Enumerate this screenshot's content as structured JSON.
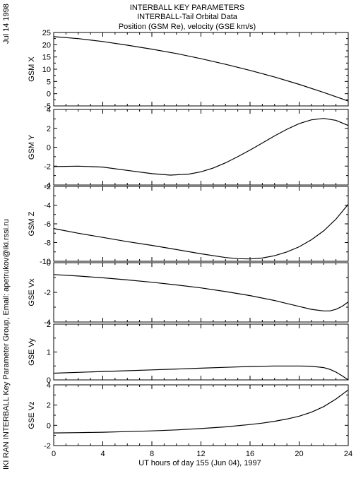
{
  "header": {
    "title1": "INTERBALL KEY PARAMETERS",
    "title2": "INTERBALL-Tail Orbital Data",
    "title3": "Position (GSM Re), velocity (GSE km/s)"
  },
  "side_labels": {
    "date": "Jul 14 1998",
    "credit": "IKI RAN INTERBALL Key Parameter Group, Email: apetrukov@iki.rssi.ru"
  },
  "chart_data": {
    "type": "line",
    "xlabel": "UT hours of day 155 (Jun 04), 1997",
    "xlim": [
      0,
      24
    ],
    "xticks": [
      0,
      4,
      8,
      12,
      16,
      20,
      24
    ],
    "panels": [
      {
        "ylabel": "GSM X",
        "ylim": [
          -5,
          25
        ],
        "yticks": [
          -5,
          0,
          5,
          10,
          15,
          20,
          25
        ],
        "x": [
          0,
          2,
          4,
          6,
          8,
          10,
          12,
          14,
          16,
          18,
          20,
          22,
          24
        ],
        "values": [
          23.3,
          22.5,
          21.3,
          19.8,
          18.2,
          16.4,
          14.3,
          12.0,
          9.5,
          6.8,
          3.8,
          0.5,
          -3.0
        ]
      },
      {
        "ylabel": "GSM Y",
        "ylim": [
          -4,
          4
        ],
        "yticks": [
          -4,
          -2,
          0,
          2,
          4
        ],
        "x": [
          0,
          2,
          4,
          6,
          8,
          9.5,
          11,
          12,
          13,
          14,
          15,
          16,
          17,
          18,
          19,
          20,
          21,
          22,
          23,
          24
        ],
        "values": [
          -2.05,
          -2.0,
          -2.1,
          -2.45,
          -2.8,
          -2.95,
          -2.85,
          -2.6,
          -2.2,
          -1.65,
          -1.0,
          -0.3,
          0.45,
          1.2,
          1.9,
          2.5,
          2.9,
          3.05,
          2.85,
          2.3
        ]
      },
      {
        "ylabel": "GSM Z",
        "ylim": [
          -10,
          -2
        ],
        "yticks": [
          -10,
          -8,
          -6,
          -4,
          -2
        ],
        "x": [
          0,
          2,
          4,
          6,
          8,
          10,
          12,
          14,
          15,
          16,
          17,
          18,
          19,
          20,
          21,
          22,
          23,
          24
        ],
        "values": [
          -6.5,
          -7.0,
          -7.45,
          -7.9,
          -8.3,
          -8.75,
          -9.2,
          -9.6,
          -9.72,
          -9.75,
          -9.65,
          -9.4,
          -9.0,
          -8.45,
          -7.7,
          -6.75,
          -5.5,
          -3.9
        ]
      },
      {
        "ylabel": "GSE Vx",
        "ylim": [
          -4,
          0
        ],
        "yticks": [
          -4,
          -2,
          0
        ],
        "x": [
          0,
          2,
          4,
          6,
          8,
          10,
          12,
          14,
          16,
          18,
          19,
          20,
          21,
          22,
          22.5,
          23,
          23.5,
          24
        ],
        "values": [
          -0.8,
          -0.9,
          -1.02,
          -1.16,
          -1.32,
          -1.5,
          -1.7,
          -1.95,
          -2.22,
          -2.55,
          -2.75,
          -2.95,
          -3.15,
          -3.25,
          -3.25,
          -3.15,
          -2.95,
          -2.65
        ]
      },
      {
        "ylabel": "GSE Vy",
        "ylim": [
          0,
          2
        ],
        "yticks": [
          0,
          1,
          2
        ],
        "x": [
          0,
          2,
          4,
          6,
          8,
          10,
          12,
          14,
          16,
          18,
          20,
          21,
          22,
          22.5,
          23,
          23.5,
          24
        ],
        "values": [
          0.24,
          0.27,
          0.3,
          0.33,
          0.36,
          0.39,
          0.42,
          0.45,
          0.48,
          0.5,
          0.5,
          0.49,
          0.44,
          0.38,
          0.28,
          0.15,
          0.0
        ]
      },
      {
        "ylabel": "GSE Vz",
        "ylim": [
          -2,
          4
        ],
        "yticks": [
          -2,
          0,
          2,
          4
        ],
        "x": [
          0,
          2,
          4,
          6,
          8,
          10,
          12,
          14,
          16,
          17,
          18,
          19,
          20,
          21,
          22,
          23,
          24
        ],
        "values": [
          -0.75,
          -0.72,
          -0.68,
          -0.62,
          -0.55,
          -0.45,
          -0.32,
          -0.15,
          0.08,
          0.22,
          0.4,
          0.62,
          0.9,
          1.3,
          1.85,
          2.6,
          3.5
        ]
      }
    ]
  }
}
